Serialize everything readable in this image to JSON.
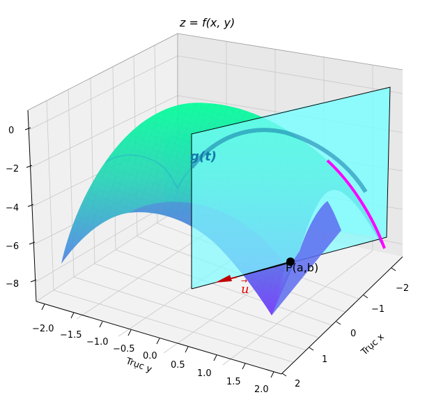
{
  "title": "z = f(x, y)",
  "axes": {
    "x_label": "Trục x",
    "y_label": "Trục y",
    "x_ticks": [
      "−2",
      "−1",
      "0",
      "1",
      "2"
    ],
    "y_ticks": [
      "−2.0",
      "−1.5",
      "−1.0",
      "−0.5",
      "0.0",
      "0.5",
      "1.0",
      "1.5",
      "2.0"
    ],
    "z_ticks": [
      "0",
      "−2",
      "−4",
      "−6",
      "−8"
    ]
  },
  "labels": {
    "point": "P(a,b)",
    "curve": "g(t)",
    "direction": "u"
  },
  "colors": {
    "surface_top": "#00ff9a",
    "surface_bottom": "#7a2cff",
    "plane": "#7ffcff",
    "curve": "#ff00ff",
    "curve_shadow": "#1478a8",
    "vector": "#c00000",
    "point": "#000000"
  }
}
